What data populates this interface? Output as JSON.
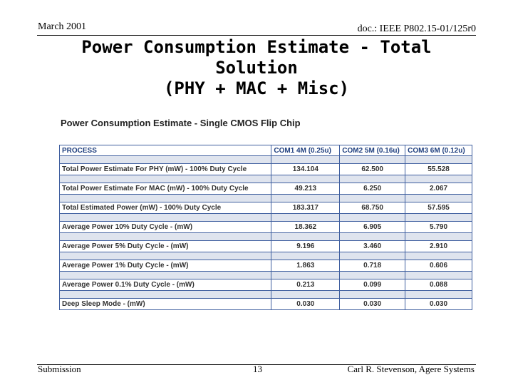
{
  "header": {
    "date": "March 2001",
    "doc_id": "doc.: IEEE P802.15-01/125r0"
  },
  "title_lines": [
    "Power Consumption Estimate - Total",
    "Solution",
    "(PHY + MAC + Misc)"
  ],
  "table": {
    "caption": "Power Consumption Estimate - Single CMOS Flip Chip",
    "columns": [
      "PROCESS",
      "COM1 4M (0.25u)",
      "COM2 5M (0.16u)",
      "COM3 6M (0.12u)"
    ],
    "rows": [
      [
        "Total Power Estimate For PHY (mW) - 100% Duty Cycle",
        "134.104",
        "62.500",
        "55.528"
      ],
      [
        "Total Power Estimate For MAC (mW) - 100% Duty Cycle",
        "49.213",
        "6.250",
        "2.067"
      ],
      [
        "Total Estimated Power (mW)  - 100% Duty Cycle",
        "183.317",
        "68.750",
        "57.595"
      ],
      [
        "Average Power 10% Duty Cycle - (mW)",
        "18.362",
        "6.905",
        "5.790"
      ],
      [
        "Average Power 5% Duty Cycle - (mW)",
        "9.196",
        "3.460",
        "2.910"
      ],
      [
        "Average Power 1% Duty Cycle - (mW)",
        "1.863",
        "0.718",
        "0.606"
      ],
      [
        "Average Power 0.1% Duty Cycle - (mW)",
        "0.213",
        "0.099",
        "0.088"
      ],
      [
        "Deep Sleep Mode  - (mW)",
        "0.030",
        "0.030",
        "0.030"
      ]
    ]
  },
  "footer": {
    "left": "Submission",
    "page": "13",
    "author": "Carl R. Stevenson, Agere Systems"
  }
}
